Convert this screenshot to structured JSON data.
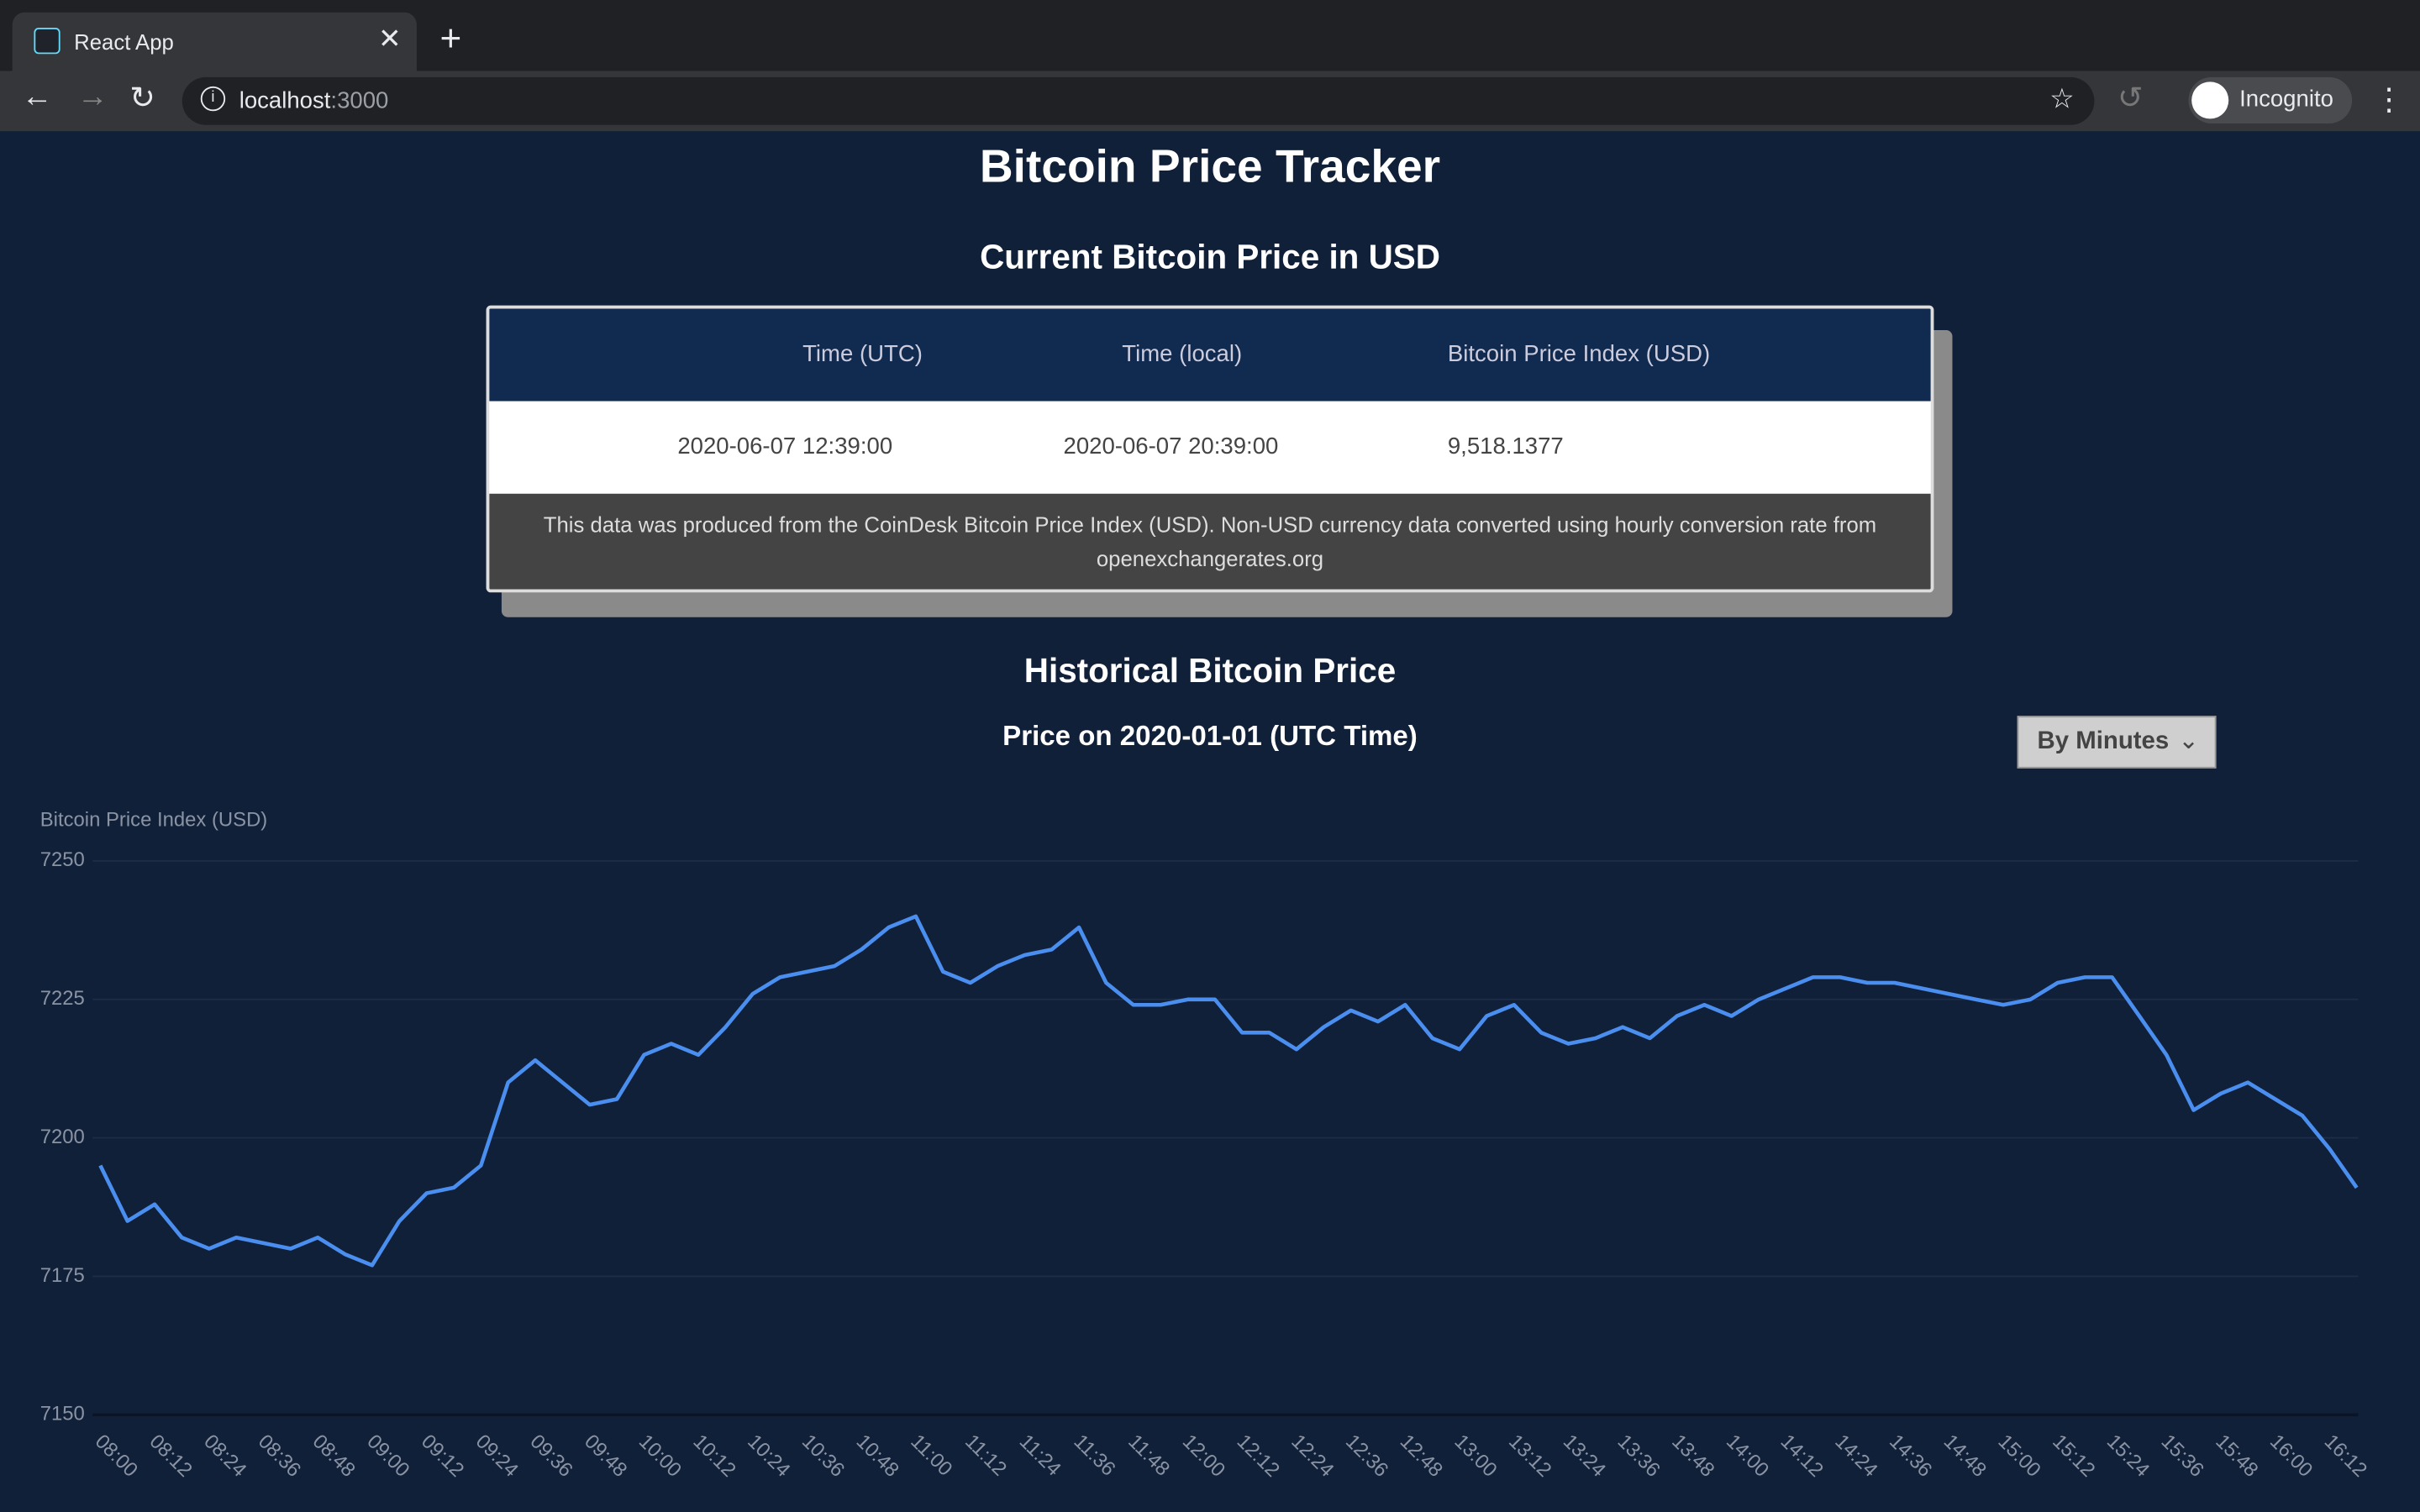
{
  "browser": {
    "tab_title": "React App",
    "url_host": "localhost",
    "url_port": ":3000",
    "profile": "Incognito"
  },
  "page": {
    "title": "Bitcoin Price Tracker",
    "current_heading": "Current Bitcoin Price in USD",
    "table": {
      "headers": [
        "Time (UTC)",
        "Time (local)",
        "Bitcoin Price Index (USD)"
      ],
      "rows": [
        [
          "2020-06-07 12:39:00",
          "2020-06-07 20:39:00",
          "9,518.1377"
        ]
      ]
    },
    "disclaimer": "This data was produced from the CoinDesk Bitcoin Price Index (USD). Non-USD currency data converted using hourly conversion rate from openexchangerates.org",
    "historical_heading": "Historical Bitcoin Price",
    "subtitle": "Price on 2020-01-01 (UTC Time)",
    "button": "By Minutes"
  },
  "chart_data": {
    "type": "line",
    "y_label": "Bitcoin Price Index (USD)",
    "color": "#4a8ef0",
    "categories": [
      "08:00",
      null,
      "08:12",
      null,
      "08:24",
      null,
      "08:36",
      null,
      "08:48",
      null,
      "09:00",
      null,
      "09:12",
      null,
      "09:24",
      null,
      "09:36",
      null,
      "09:48",
      null,
      "10:00",
      null,
      "10:12",
      null,
      "10:24",
      null,
      "10:36",
      null,
      "10:48",
      null,
      "11:00",
      null,
      "11:12",
      null,
      "11:24",
      null,
      "11:36",
      null,
      "11:48",
      null,
      "12:00",
      null,
      "12:12",
      null,
      "12:24",
      null,
      "12:36",
      null,
      "12:48",
      null,
      "13:00",
      null,
      "13:12",
      null,
      "13:24",
      null,
      "13:36",
      null,
      "13:48",
      null,
      "14:00",
      null,
      "14:12",
      null,
      "14:24",
      null,
      "14:36",
      null,
      "14:48",
      null,
      "15:00",
      null,
      "15:12",
      null,
      "15:24",
      null,
      "15:36",
      null,
      "15:48",
      null,
      "16:00",
      null,
      "16:12",
      null
    ],
    "values": [
      7195,
      7185,
      7188,
      7182,
      7180,
      7182,
      7181,
      7180,
      7182,
      7179,
      7177,
      7185,
      7190,
      7191,
      7195,
      7210,
      7214,
      7210,
      7206,
      7207,
      7215,
      7217,
      7215,
      7220,
      7226,
      7229,
      7230,
      7231,
      7234,
      7238,
      7240,
      7230,
      7228,
      7231,
      7233,
      7234,
      7238,
      7228,
      7224,
      7224,
      7225,
      7225,
      7219,
      7219,
      7216,
      7220,
      7223,
      7221,
      7224,
      7218,
      7216,
      7222,
      7224,
      7219,
      7217,
      7218,
      7220,
      7218,
      7222,
      7224,
      7222,
      7225,
      7227,
      7229,
      7229,
      7228,
      7228,
      7227,
      7226,
      7225,
      7224,
      7225,
      7228,
      7229,
      7229,
      7222,
      7215,
      7205,
      7208,
      7210,
      7207,
      7204,
      7198,
      7191
    ],
    "ylim": [
      7150,
      7250
    ],
    "yticks": [
      7150,
      7175,
      7200,
      7225,
      7250
    ],
    "grid": true
  }
}
